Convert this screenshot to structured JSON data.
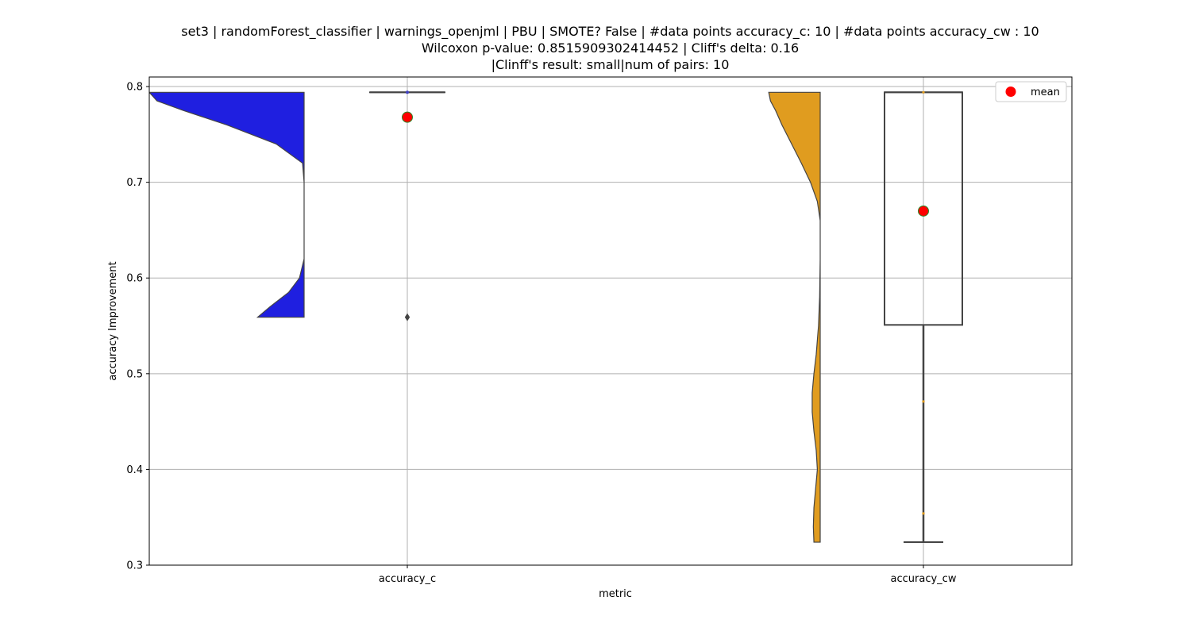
{
  "chart_data": {
    "type": "violin+box",
    "title_lines": [
      "set3 | randomForest_classifier | warnings_openjml | PBU | SMOTE? False | #data points accuracy_c: 10 | #data points accuracy_cw : 10",
      "Wilcoxon p-value: 0.8515909302414452 | Cliff's delta: 0.16",
      "|Clinff's result: small|num of pairs: 10"
    ],
    "xlabel": "metric",
    "ylabel": "accuracy Improvement",
    "categories": [
      "accuracy_c",
      "accuracy_cw"
    ],
    "ylim": [
      0.3,
      0.81
    ],
    "yticks": [
      0.3,
      0.4,
      0.5,
      0.6,
      0.7,
      0.8
    ],
    "ytick_labels": [
      "0.3",
      "0.4",
      "0.5",
      "0.6",
      "0.7",
      "0.8"
    ],
    "grid": true,
    "legend": {
      "position": "top-right",
      "entries": [
        "mean"
      ]
    },
    "colors": {
      "accuracy_c": "#1f1fe0",
      "accuracy_cw": "#e09c1f",
      "mean": "#ff0000",
      "mean_edge": "#2a8a2a"
    },
    "series": [
      {
        "category": "accuracy_c",
        "min": 0.559,
        "max": 0.794,
        "q1": 0.794,
        "median": 0.794,
        "q3": 0.794,
        "mean": 0.768,
        "whisker_low": 0.794,
        "whisker_high": 0.794,
        "outliers": [
          0.559
        ],
        "density": [
          [
            0.559,
            0.3
          ],
          [
            0.57,
            0.22
          ],
          [
            0.585,
            0.1
          ],
          [
            0.6,
            0.03
          ],
          [
            0.62,
            0.0
          ],
          [
            0.7,
            0.0
          ],
          [
            0.72,
            0.01
          ],
          [
            0.74,
            0.18
          ],
          [
            0.76,
            0.5
          ],
          [
            0.775,
            0.78
          ],
          [
            0.785,
            0.95
          ],
          [
            0.794,
            1.0
          ]
        ]
      },
      {
        "category": "accuracy_cw",
        "min": 0.324,
        "max": 0.794,
        "q1": 0.551,
        "median": 0.794,
        "q3": 0.794,
        "mean": 0.67,
        "whisker_low": 0.324,
        "whisker_high": 0.794,
        "outliers": [],
        "strip_points": [
          0.794,
          0.471,
          0.354
        ],
        "density": [
          [
            0.324,
            0.11
          ],
          [
            0.34,
            0.12
          ],
          [
            0.36,
            0.11
          ],
          [
            0.38,
            0.08
          ],
          [
            0.4,
            0.05
          ],
          [
            0.42,
            0.07
          ],
          [
            0.44,
            0.11
          ],
          [
            0.46,
            0.14
          ],
          [
            0.48,
            0.14
          ],
          [
            0.5,
            0.11
          ],
          [
            0.52,
            0.07
          ],
          [
            0.55,
            0.03
          ],
          [
            0.58,
            0.01
          ],
          [
            0.62,
            0.0
          ],
          [
            0.66,
            0.0
          ],
          [
            0.68,
            0.05
          ],
          [
            0.7,
            0.17
          ],
          [
            0.72,
            0.33
          ],
          [
            0.74,
            0.5
          ],
          [
            0.76,
            0.67
          ],
          [
            0.775,
            0.78
          ],
          [
            0.785,
            0.87
          ],
          [
            0.794,
            0.9
          ]
        ]
      }
    ]
  }
}
